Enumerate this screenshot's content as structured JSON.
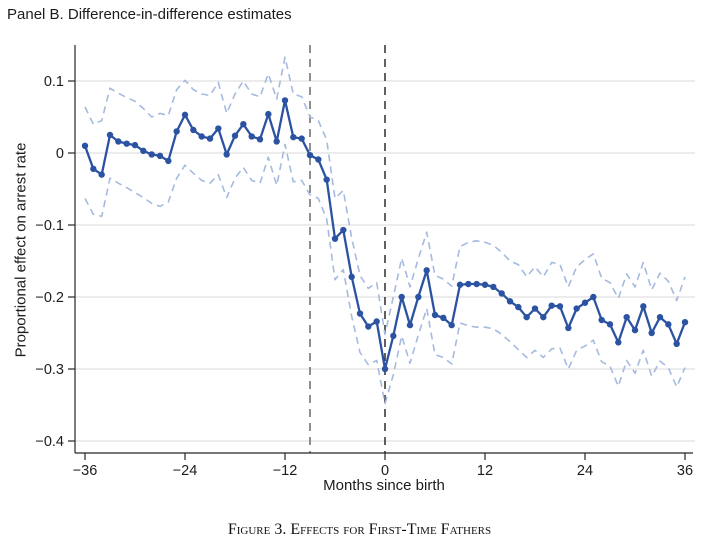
{
  "panel_title": "Panel B. Difference-in-difference estimates",
  "caption": "Figure 3. Effects for First-Time Fathers",
  "colors": {
    "estimate_line": "#2b53a2",
    "ci_line": "#a6badf",
    "gridline": "#d9d9d9",
    "axis": "#262626",
    "reference_line_conception": "#6a6a6a",
    "reference_line_birth": "#2b2b2b"
  },
  "chart_data": {
    "type": "line",
    "title": "Panel B. Difference-in-difference estimates",
    "xlabel": "Months since birth",
    "ylabel": "Proportional effect on arrest rate",
    "xlim": [
      -38,
      37.5
    ],
    "ylim": [
      -0.417,
      0.15
    ],
    "grid": "horizontal",
    "legend": "none",
    "x_ticks": [
      -36,
      -24,
      -12,
      0,
      12,
      24,
      36
    ],
    "x_tick_labels": [
      "−36",
      "−24",
      "−12",
      "0",
      "12",
      "24",
      "36"
    ],
    "y_ticks": [
      0.1,
      0,
      -0.1,
      -0.2,
      -0.3,
      -0.4
    ],
    "y_tick_labels": [
      "0.1",
      "0",
      "−0.1",
      "−0.2",
      "−0.3",
      "−0.4"
    ],
    "reference_lines_x": [
      -9,
      0
    ],
    "reference_line_colors": [
      "#6a6a6a",
      "#2b2b2b"
    ],
    "months": [
      -36,
      -35,
      -34,
      -33,
      -32,
      -31,
      -30,
      -29,
      -28,
      -27,
      -26,
      -25,
      -24,
      -23,
      -22,
      -21,
      -20,
      -19,
      -18,
      -17,
      -16,
      -15,
      -14,
      -13,
      -12,
      -11,
      -10,
      -9,
      -8,
      -7,
      -6,
      -5,
      -4,
      -3,
      -2,
      -1,
      0,
      1,
      2,
      3,
      4,
      5,
      6,
      7,
      8,
      9,
      10,
      11,
      12,
      13,
      14,
      15,
      16,
      17,
      18,
      19,
      20,
      21,
      22,
      23,
      24,
      25,
      26,
      27,
      28,
      29,
      30,
      31,
      32,
      33,
      34,
      35,
      36
    ],
    "series": [
      {
        "name": "Difference-in-difference estimate",
        "style": "solid",
        "markers": true,
        "color": "#2b53a2",
        "values": [
          0.01,
          -0.022,
          -0.03,
          0.025,
          0.016,
          0.013,
          0.011,
          0.003,
          -0.002,
          -0.004,
          -0.011,
          0.03,
          0.053,
          0.032,
          0.023,
          0.02,
          0.034,
          -0.002,
          0.024,
          0.04,
          0.023,
          0.019,
          0.054,
          0.016,
          0.073,
          0.022,
          0.02,
          -0.003,
          -0.009,
          -0.037,
          -0.119,
          -0.107,
          -0.172,
          -0.223,
          -0.241,
          -0.234,
          -0.3,
          -0.254,
          -0.2,
          -0.239,
          -0.2,
          -0.163,
          -0.225,
          -0.229,
          -0.239,
          -0.183,
          -0.182,
          -0.182,
          -0.183,
          -0.186,
          -0.195,
          -0.206,
          -0.214,
          -0.228,
          -0.216,
          -0.228,
          -0.212,
          -0.213,
          -0.243,
          -0.216,
          -0.208,
          -0.2,
          -0.232,
          -0.238,
          -0.263,
          -0.228,
          -0.246,
          -0.213,
          -0.25,
          -0.228,
          -0.238,
          -0.265,
          -0.235
        ]
      },
      {
        "name": "Confidence interval upper bound",
        "style": "dashed",
        "markers": false,
        "color": "#a6badf",
        "values": [
          0.064,
          0.04,
          0.045,
          0.09,
          0.083,
          0.077,
          0.072,
          0.062,
          0.05,
          0.055,
          0.052,
          0.088,
          0.101,
          0.088,
          0.082,
          0.08,
          0.098,
          0.055,
          0.082,
          0.1,
          0.082,
          0.078,
          0.11,
          0.075,
          0.133,
          0.082,
          0.078,
          0.05,
          0.045,
          0.018,
          -0.063,
          -0.052,
          -0.118,
          -0.17,
          -0.188,
          -0.18,
          -0.252,
          -0.2,
          -0.146,
          -0.186,
          -0.147,
          -0.11,
          -0.17,
          -0.175,
          -0.185,
          -0.13,
          -0.124,
          -0.122,
          -0.124,
          -0.128,
          -0.138,
          -0.15,
          -0.155,
          -0.172,
          -0.158,
          -0.172,
          -0.152,
          -0.155,
          -0.186,
          -0.158,
          -0.148,
          -0.14,
          -0.174,
          -0.18,
          -0.202,
          -0.168,
          -0.186,
          -0.152,
          -0.19,
          -0.167,
          -0.178,
          -0.205,
          -0.172
        ]
      },
      {
        "name": "Confidence interval lower bound",
        "style": "dashed",
        "markers": false,
        "color": "#a6badf",
        "values": [
          -0.063,
          -0.085,
          -0.088,
          -0.035,
          -0.042,
          -0.048,
          -0.055,
          -0.062,
          -0.07,
          -0.074,
          -0.068,
          -0.035,
          -0.017,
          -0.028,
          -0.038,
          -0.042,
          -0.03,
          -0.062,
          -0.035,
          -0.02,
          -0.038,
          -0.042,
          -0.006,
          -0.045,
          0.012,
          -0.04,
          -0.038,
          -0.058,
          -0.063,
          -0.092,
          -0.176,
          -0.162,
          -0.227,
          -0.277,
          -0.294,
          -0.288,
          -0.348,
          -0.308,
          -0.254,
          -0.292,
          -0.253,
          -0.216,
          -0.28,
          -0.284,
          -0.293,
          -0.236,
          -0.24,
          -0.242,
          -0.242,
          -0.244,
          -0.252,
          -0.262,
          -0.273,
          -0.284,
          -0.274,
          -0.284,
          -0.272,
          -0.271,
          -0.3,
          -0.274,
          -0.268,
          -0.26,
          -0.29,
          -0.296,
          -0.324,
          -0.288,
          -0.306,
          -0.274,
          -0.31,
          -0.289,
          -0.298,
          -0.325,
          -0.298
        ]
      }
    ]
  }
}
